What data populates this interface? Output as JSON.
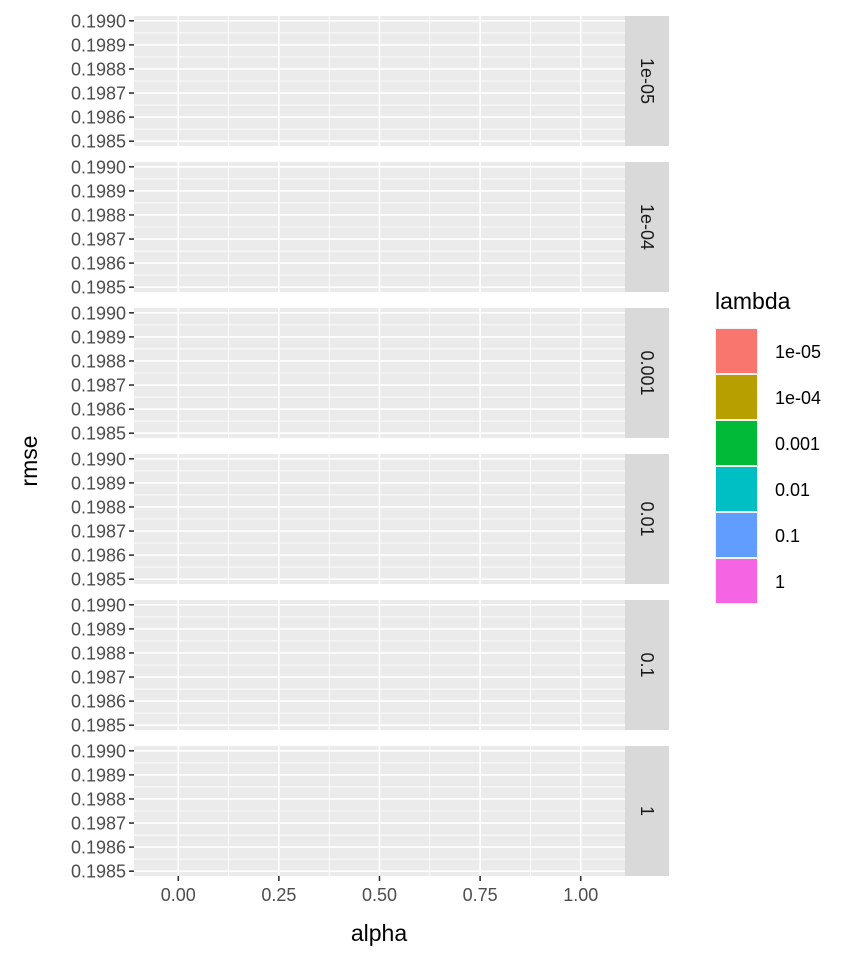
{
  "chart_data": {
    "type": "scatter",
    "facet_by": "lambda",
    "panels": [
      {
        "label": "1e-05",
        "points": []
      },
      {
        "label": "1e-04",
        "points": []
      },
      {
        "label": "0.001",
        "points": []
      },
      {
        "label": "0.01",
        "points": []
      },
      {
        "label": "0.1",
        "points": []
      },
      {
        "label": "1",
        "points": []
      }
    ],
    "xlabel": "alpha",
    "ylabel": "rmse",
    "x_ticks": [
      "0.00",
      "0.25",
      "0.50",
      "0.75",
      "1.00"
    ],
    "x_tick_values": [
      0,
      0.25,
      0.5,
      0.75,
      1.0
    ],
    "xlim": [
      -0.11,
      1.11
    ],
    "y_ticks": [
      "0.1985",
      "0.1986",
      "0.1987",
      "0.1988",
      "0.1989",
      "0.1990"
    ],
    "y_tick_values": [
      0.1985,
      0.1986,
      0.1987,
      0.1988,
      0.1989,
      0.199
    ],
    "ylim": [
      0.19848,
      0.19902
    ],
    "grid": true,
    "legend": {
      "title": "lambda",
      "position": "right",
      "entries": [
        {
          "label": "1e-05",
          "color": "#F8766D"
        },
        {
          "label": "1e-04",
          "color": "#B79F00"
        },
        {
          "label": "0.001",
          "color": "#00BA38"
        },
        {
          "label": "0.01",
          "color": "#00BFC4"
        },
        {
          "label": "0.1",
          "color": "#619CFF"
        },
        {
          "label": "1",
          "color": "#F564E3"
        }
      ]
    },
    "colors": {
      "panel_background": "#EBEBEB",
      "grid_line": "#FFFFFF",
      "strip_background": "#D9D9D9",
      "tick_text": "#4D4D4D"
    }
  }
}
